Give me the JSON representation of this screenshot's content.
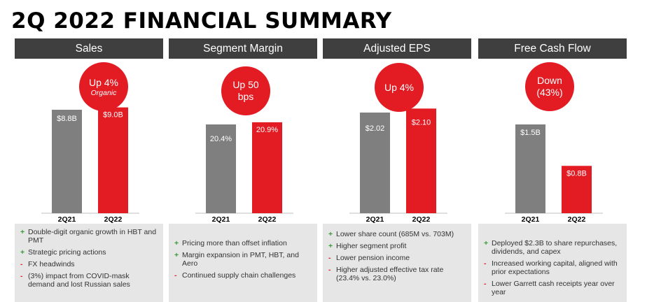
{
  "title": "2Q 2022 FINANCIAL SUMMARY",
  "colors": {
    "prior": "#7f7f7f",
    "current": "#e31b23",
    "header": "#3f3f3f"
  },
  "chart_data": [
    {
      "type": "bar",
      "title": "Sales",
      "badge": {
        "main": "Up 4%",
        "sub": "Organic"
      },
      "categories": [
        "2Q21",
        "2Q22"
      ],
      "values": [
        8.8,
        9.0
      ],
      "value_labels": [
        "$8.8B",
        "$9.0B"
      ],
      "notes": [
        {
          "sign": "+",
          "text": "Double-digit organic growth in HBT and PMT"
        },
        {
          "sign": "+",
          "text": "Strategic pricing actions"
        },
        {
          "sign": "-",
          "text": "FX headwinds"
        },
        {
          "sign": "-",
          "text": "(3%) impact from COVID-mask demand and lost Russian sales"
        }
      ]
    },
    {
      "type": "bar",
      "title": "Segment Margin",
      "badge": {
        "main": "Up 50 bps",
        "sub": ""
      },
      "categories": [
        "2Q21",
        "2Q22"
      ],
      "values": [
        20.4,
        20.9
      ],
      "value_labels": [
        "20.4%",
        "20.9%"
      ],
      "notes": [
        {
          "sign": "+",
          "text": "Pricing more than offset inflation"
        },
        {
          "sign": "+",
          "text": "Margin expansion in PMT, HBT, and Aero"
        },
        {
          "sign": "-",
          "text": "Continued supply chain challenges"
        }
      ]
    },
    {
      "type": "bar",
      "title": "Adjusted EPS",
      "badge": {
        "main": "Up 4%",
        "sub": ""
      },
      "categories": [
        "2Q21",
        "2Q22"
      ],
      "values": [
        2.02,
        2.1
      ],
      "value_labels": [
        "$2.02",
        "$2.10"
      ],
      "notes": [
        {
          "sign": "+",
          "text": "Lower share count (685M vs. 703M)"
        },
        {
          "sign": "+",
          "text": "Higher segment profit"
        },
        {
          "sign": "-",
          "text": "Lower pension income"
        },
        {
          "sign": "-",
          "text": "Higher adjusted effective tax rate (23.4% vs. 23.0%)"
        }
      ]
    },
    {
      "type": "bar",
      "title": "Free Cash Flow",
      "badge": {
        "main": "Down (43%)",
        "sub": ""
      },
      "categories": [
        "2Q21",
        "2Q22"
      ],
      "values": [
        1.5,
        0.8
      ],
      "value_labels": [
        "$1.5B",
        "$0.8B"
      ],
      "notes": [
        {
          "sign": "+",
          "text": "Deployed $2.3B to share repurchases, dividends, and capex"
        },
        {
          "sign": "-",
          "text": "Increased working capital, aligned with prior expectations"
        },
        {
          "sign": "-",
          "text": "Lower Garrett cash receipts year over year"
        }
      ]
    }
  ]
}
